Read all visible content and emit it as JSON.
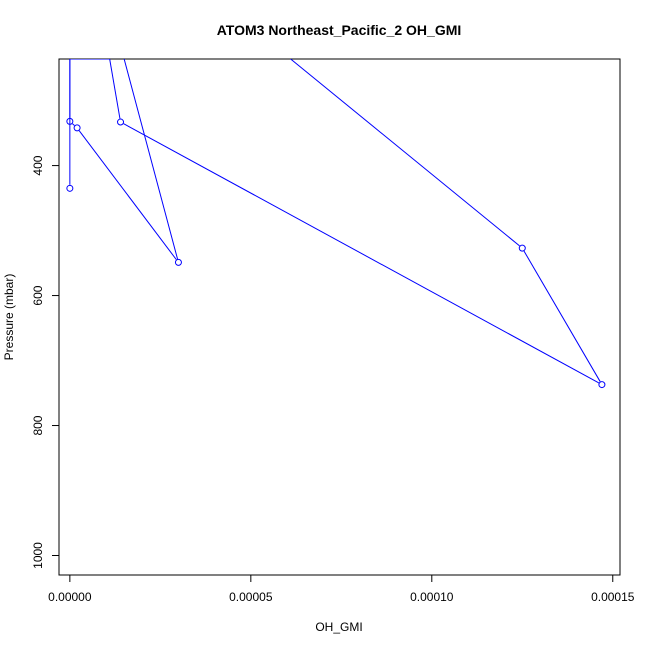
{
  "chart_data": {
    "type": "line",
    "title": "ATOM3 Northeast_Pacific_2 OH_GMI",
    "xlabel": "OH_GMI",
    "ylabel": "Pressure (mbar)",
    "xlim": [
      -3e-06,
      0.000152
    ],
    "ylim": [
      1030,
      236
    ],
    "y_reversed": true,
    "x_ticks": [
      {
        "value": 0,
        "label": "0.00000"
      },
      {
        "value": 5e-05,
        "label": "0.00005"
      },
      {
        "value": 0.0001,
        "label": "0.00010"
      },
      {
        "value": 0.00015,
        "label": "0.00015"
      }
    ],
    "y_ticks": [
      {
        "value": 400,
        "label": "400"
      },
      {
        "value": 600,
        "label": "600"
      },
      {
        "value": 800,
        "label": "800"
      },
      {
        "value": 1000,
        "label": "1000"
      }
    ],
    "series": [
      {
        "color": "#0000ff",
        "marker": "open-circle",
        "points": [
          {
            "x": 6.1e-05,
            "y": 236
          },
          {
            "x": 0.000125,
            "y": 527
          },
          {
            "x": 0.000147,
            "y": 737
          },
          {
            "x": 1.4e-05,
            "y": 333
          },
          {
            "x": 1.1e-05,
            "y": 236
          },
          {
            "x": 0.0,
            "y": 236
          },
          {
            "x": 0.0,
            "y": 435
          }
        ]
      },
      {
        "color": "#0000ff",
        "marker": "open-circle",
        "points": [
          {
            "x": 1.5e-05,
            "y": 236
          },
          {
            "x": 3e-05,
            "y": 549
          },
          {
            "x": 2e-06,
            "y": 342
          },
          {
            "x": 0.0,
            "y": 332
          },
          {
            "x": 0.0,
            "y": 236
          }
        ]
      }
    ],
    "grid": false,
    "legend": "none"
  }
}
